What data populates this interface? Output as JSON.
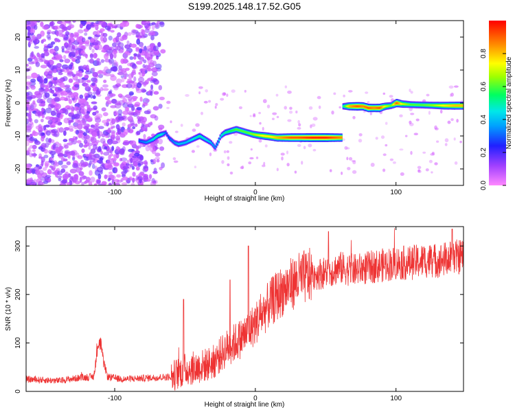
{
  "title": "S199.2025.148.17.52.G05",
  "chart_data": [
    {
      "type": "heatmap",
      "xlabel": "Height of straight line (km)",
      "ylabel": "Frequency (Hz)",
      "xlim": [
        -163,
        148
      ],
      "ylim": [
        -25,
        25
      ],
      "xticks": [
        -100,
        0,
        100
      ],
      "yticks": [
        -20,
        -10,
        0,
        10,
        20
      ],
      "grid": false,
      "colorbar": {
        "label": "Normalized spectral amplitude",
        "range": [
          0,
          1
        ],
        "ticks": [
          0.0,
          0.2,
          0.4,
          0.6,
          0.8
        ],
        "colormap": [
          "#ff44ff",
          "#2020ff",
          "#00dcff",
          "#00ff40",
          "#ffff00",
          "#ff8000",
          "#ff0000"
        ]
      },
      "noise_region_x": [
        -163,
        -65
      ],
      "ridge": {
        "x": [
          -83,
          -78,
          -73,
          -70,
          -67,
          -64,
          -62,
          -58,
          -55,
          -50,
          -45,
          -40,
          -36,
          -32,
          -29,
          -27,
          -25,
          -22,
          -18,
          -14,
          -10,
          -6,
          -2,
          2,
          6,
          10,
          15,
          20,
          25,
          30,
          40,
          50,
          55,
          61
        ],
        "freq": [
          -11.5,
          -12,
          -11,
          -10,
          -9.5,
          -9,
          -10.5,
          -12,
          -12.5,
          -12,
          -11,
          -10,
          -11,
          -12,
          -13.5,
          -12,
          -10,
          -9,
          -8.5,
          -8,
          -8.5,
          -9,
          -9.5,
          -9.8,
          -10,
          -10.2,
          -10.5,
          -10.5,
          -10.5,
          -10.5,
          -10.5,
          -10.5,
          -10.5,
          -10.5
        ],
        "amp": [
          0.3,
          0.35,
          0.45,
          0.5,
          0.45,
          0.3,
          0.3,
          0.35,
          0.4,
          0.4,
          0.45,
          0.5,
          0.45,
          0.4,
          0.35,
          0.4,
          0.45,
          0.5,
          0.55,
          0.6,
          0.6,
          0.6,
          0.65,
          0.7,
          0.75,
          0.75,
          0.8,
          0.85,
          0.9,
          0.9,
          0.95,
          0.95,
          0.9,
          0.85
        ]
      },
      "ridge2": {
        "x": [
          62,
          66,
          72,
          76,
          80,
          84,
          88,
          92,
          96,
          100,
          104,
          110,
          118,
          126,
          134,
          142,
          148
        ],
        "freq": [
          -1,
          -1,
          -1,
          -1,
          -1.5,
          -1.5,
          -1.5,
          -1,
          -0.8,
          0,
          -0.3,
          -0.5,
          -0.6,
          -0.7,
          -0.8,
          -0.8,
          -0.8
        ],
        "amp": [
          0.5,
          0.8,
          0.9,
          0.85,
          0.9,
          0.85,
          0.9,
          0.7,
          0.6,
          0.9,
          0.7,
          0.6,
          0.6,
          0.65,
          0.75,
          0.8,
          0.8
        ]
      }
    },
    {
      "type": "line",
      "xlabel": "Height of straight line (km)",
      "ylabel": "SNR (10 * v/v)",
      "xlim": [
        -163,
        148
      ],
      "ylim": [
        0,
        340
      ],
      "xticks": [
        -100,
        0,
        100
      ],
      "yticks": [
        0,
        100,
        200,
        300
      ],
      "grid": false,
      "color": "#ee3333",
      "trend": {
        "x": [
          -163,
          -140,
          -125,
          -115,
          -112,
          -110,
          -108,
          -105,
          -95,
          -75,
          -60,
          -50,
          -40,
          -30,
          -20,
          -10,
          0,
          5,
          10,
          20,
          30,
          40,
          50,
          60,
          70,
          80,
          90,
          100,
          110,
          120,
          130,
          140,
          148
        ],
        "y": [
          25,
          22,
          28,
          30,
          90,
          100,
          60,
          30,
          25,
          28,
          30,
          45,
          50,
          60,
          90,
          110,
          140,
          160,
          180,
          210,
          230,
          240,
          245,
          255,
          250,
          255,
          260,
          265,
          265,
          270,
          270,
          275,
          280
        ]
      },
      "spikes": [
        {
          "x": -51,
          "y": 190
        },
        {
          "x": -18,
          "y": 230
        },
        {
          "x": -5,
          "y": 300
        },
        {
          "x": 52,
          "y": 330
        },
        {
          "x": 140,
          "y": 335
        }
      ]
    }
  ]
}
